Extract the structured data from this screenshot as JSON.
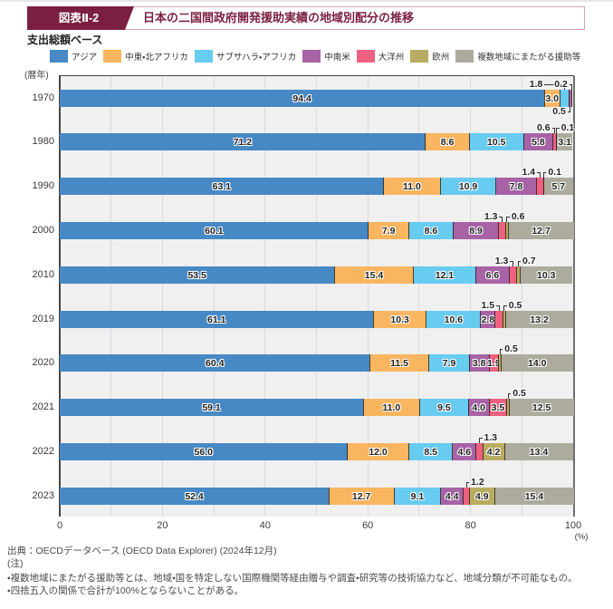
{
  "header": {
    "figure_label": "図表Ⅱ-2",
    "title": "日本の二国間政府開発援助実績の地域別配分の推移"
  },
  "subtitle": "支出総額ベース",
  "chart_data": {
    "type": "bar",
    "variant": "horizontal-stacked-percent",
    "year_axis_label": "(暦年)",
    "unit_label": "(%)",
    "xlim": [
      0,
      100
    ],
    "x_ticks": [
      0,
      20,
      40,
      60,
      80,
      100
    ],
    "grid": "vertical every 10",
    "legend_position": "top",
    "series_names": [
      "アジア",
      "中東・北アフリカ",
      "サブサハラ・アフリカ",
      "中南米",
      "大洋州",
      "欧州",
      "複数地域にまたがる援助等"
    ],
    "series_colors": [
      "#4689c4",
      "#f9b55f",
      "#68cbf0",
      "#a763a6",
      "#ee6080",
      "#b9ac62",
      "#acab9d"
    ],
    "categories": [
      "1970",
      "1980",
      "1990",
      "2000",
      "2010",
      "2019",
      "2020",
      "2021",
      "2022",
      "2023"
    ],
    "rows": [
      {
        "year": "1970",
        "values": [
          94.4,
          3.0,
          1.8,
          0.5,
          0.2,
          0,
          0
        ],
        "inline": [
          0,
          1
        ],
        "callouts": [
          {
            "series": 2,
            "side": "above",
            "dir": "left",
            "gap": 22
          },
          {
            "series": 4,
            "side": "above",
            "dir": "left",
            "gap": 3
          },
          {
            "series": 3,
            "side": "below",
            "dir": "left",
            "gap": 3
          }
        ]
      },
      {
        "year": "1980",
        "values": [
          71.2,
          8.6,
          10.5,
          5.8,
          0.6,
          0.1,
          3.1
        ],
        "inline": [
          0,
          1,
          2,
          3,
          6
        ],
        "callouts": [
          {
            "series": 4,
            "side": "above",
            "dir": "left",
            "gap": 3
          },
          {
            "series": 5,
            "side": "above",
            "dir": "right",
            "gap": 3
          }
        ]
      },
      {
        "year": "1990",
        "values": [
          63.1,
          11.0,
          10.9,
          7.8,
          1.4,
          0.1,
          5.7
        ],
        "inline": [
          0,
          1,
          2,
          3,
          6
        ],
        "callouts": [
          {
            "series": 4,
            "side": "above",
            "dir": "left",
            "gap": 3
          },
          {
            "series": 5,
            "side": "above",
            "dir": "right",
            "gap": 3
          }
        ]
      },
      {
        "year": "2000",
        "values": [
          60.1,
          7.9,
          8.6,
          8.9,
          1.3,
          0.6,
          12.7
        ],
        "inline": [
          0,
          1,
          2,
          3,
          6
        ],
        "callouts": [
          {
            "series": 4,
            "side": "above",
            "dir": "left",
            "gap": 3
          },
          {
            "series": 5,
            "side": "above",
            "dir": "right",
            "gap": 3
          }
        ]
      },
      {
        "year": "2010",
        "values": [
          53.5,
          15.4,
          12.1,
          6.6,
          1.3,
          0.7,
          10.3
        ],
        "inline": [
          0,
          1,
          2,
          3,
          6
        ],
        "callouts": [
          {
            "series": 4,
            "side": "above",
            "dir": "left",
            "gap": 3
          },
          {
            "series": 5,
            "side": "above",
            "dir": "right",
            "gap": 3
          }
        ]
      },
      {
        "year": "2019",
        "values": [
          61.1,
          10.3,
          10.6,
          2.8,
          1.5,
          0.5,
          13.2
        ],
        "inline": [
          0,
          1,
          2,
          3,
          6
        ],
        "callouts": [
          {
            "series": 4,
            "side": "above",
            "dir": "left",
            "gap": 3
          },
          {
            "series": 5,
            "side": "above",
            "dir": "right",
            "gap": 3
          }
        ]
      },
      {
        "year": "2020",
        "values": [
          60.4,
          11.5,
          7.9,
          3.8,
          1.9,
          0.5,
          14.0
        ],
        "inline": [
          0,
          1,
          2,
          3,
          4,
          6
        ],
        "callouts": [
          {
            "series": 5,
            "side": "above",
            "dir": "right",
            "gap": 3
          }
        ]
      },
      {
        "year": "2021",
        "values": [
          59.1,
          11.0,
          9.5,
          4.0,
          3.5,
          0.5,
          12.5
        ],
        "inline": [
          0,
          1,
          2,
          3,
          4,
          6
        ],
        "callouts": [
          {
            "series": 5,
            "side": "above",
            "dir": "right",
            "gap": 3
          }
        ]
      },
      {
        "year": "2022",
        "values": [
          56.0,
          12.0,
          8.5,
          4.6,
          1.3,
          4.2,
          13.4
        ],
        "inline": [
          0,
          1,
          2,
          3,
          5,
          6
        ],
        "callouts": [
          {
            "series": 4,
            "side": "above",
            "dir": "right",
            "gap": 3
          }
        ]
      },
      {
        "year": "2023",
        "values": [
          52.4,
          12.7,
          9.1,
          4.4,
          1.2,
          4.9,
          15.4
        ],
        "inline": [
          0,
          1,
          2,
          3,
          5,
          6
        ],
        "callouts": [
          {
            "series": 4,
            "side": "above",
            "dir": "right",
            "gap": 3
          }
        ]
      }
    ]
  },
  "footer": {
    "source": "出典：OECDデータベース (OECD Data Explorer) (2024年12月)",
    "note_label": "(注)",
    "notes": [
      "・複数地域にまたがる援助等とは、地域・国を特定しない国際機関等経由贈与や調査・研究等の技術協力など、地域分類が不可能なもの。",
      "・四捨五入の関係で合計が100%とならないことがある。"
    ]
  },
  "colors": {
    "header_maroon": "#7b1f42",
    "header_border_pink": "#d9a3b4",
    "plot_background": "#f0f0f1",
    "gridline": "#d9d9d9",
    "axis_line": "#454545"
  }
}
